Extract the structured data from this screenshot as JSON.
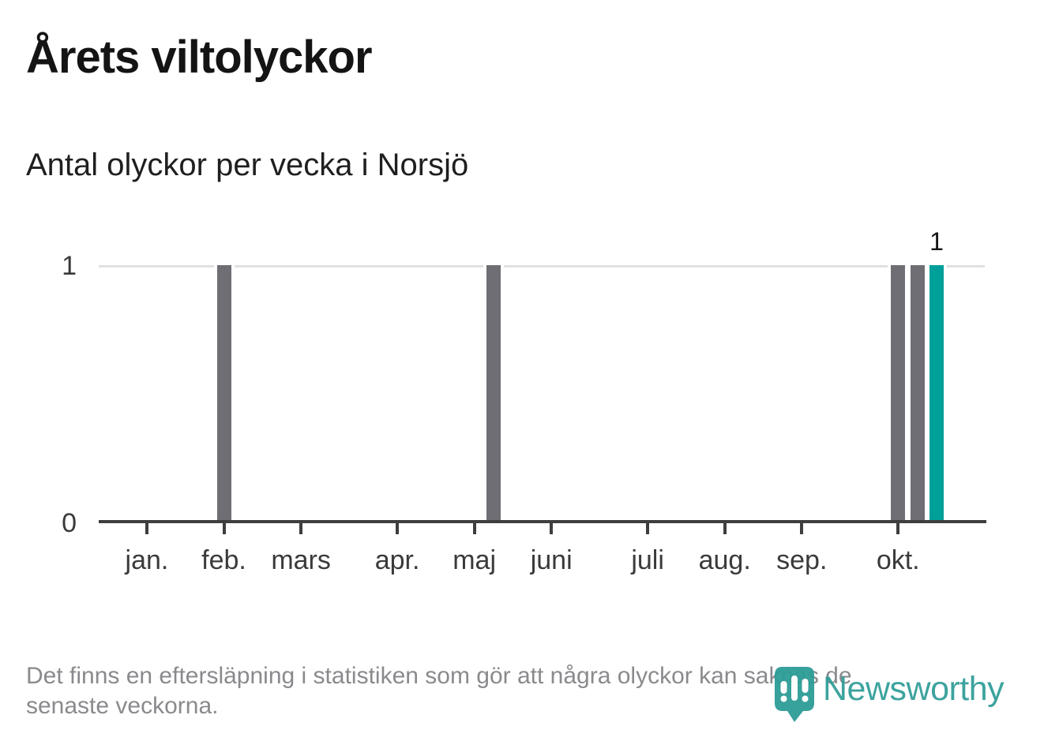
{
  "title": "Årets viltolyckor",
  "subtitle": "Antal olyckor per vecka i Norsjö",
  "y_axis": {
    "top_label": "1",
    "bottom_label": "0"
  },
  "footer": {
    "disclaimer": "Det finns en eftersläpning i statistiken som gör att några olyckor kan saknas de senaste veckorna.",
    "disclaimer_lines": [
      "Det finns en eftersläpning i statistiken som gör att några olyckor kan saknas de",
      "senaste veckorna."
    ]
  },
  "branding": {
    "name": "Newsworthy",
    "color": "#2d9c96"
  },
  "chart_data": {
    "type": "bar",
    "title": "Årets viltolyckor",
    "subtitle": "Antal olyckor per vecka i Norsjö",
    "x_unit": "week of year",
    "num_weeks": 46,
    "ylim": [
      0,
      1
    ],
    "yticks": [
      0,
      1
    ],
    "grid": "horizontal line at y=1 only",
    "series": [
      {
        "name": "Antal olyckor per vecka",
        "values": [
          0,
          0,
          0,
          0,
          0,
          0,
          1,
          0,
          0,
          0,
          0,
          0,
          0,
          0,
          0,
          0,
          0,
          0,
          0,
          0,
          1,
          0,
          0,
          0,
          0,
          0,
          0,
          0,
          0,
          0,
          0,
          0,
          0,
          0,
          0,
          0,
          0,
          0,
          0,
          0,
          0,
          1,
          1,
          1,
          0,
          0
        ]
      }
    ],
    "month_ticks": [
      {
        "label": "jan.",
        "week_index": 2
      },
      {
        "label": "feb.",
        "week_index": 6
      },
      {
        "label": "mars",
        "week_index": 10
      },
      {
        "label": "apr.",
        "week_index": 15
      },
      {
        "label": "maj",
        "week_index": 19
      },
      {
        "label": "juni",
        "week_index": 23
      },
      {
        "label": "juli",
        "week_index": 28
      },
      {
        "label": "aug.",
        "week_index": 32
      },
      {
        "label": "sep.",
        "week_index": 36
      },
      {
        "label": "okt.",
        "week_index": 41
      }
    ],
    "highlight_week_index": 43,
    "annotation": {
      "week_index": 43,
      "text": "1"
    },
    "colors": {
      "bar": "#6e6e74",
      "highlight": "#00a09a",
      "gridline": "#e0e0e0",
      "axis": "#3e3e3e"
    }
  }
}
